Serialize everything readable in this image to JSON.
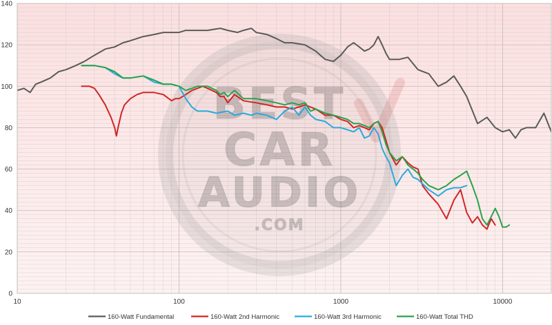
{
  "chart_data": {
    "type": "line",
    "x_scale": "log",
    "xlim": [
      10,
      20000
    ],
    "ylim": [
      0,
      140
    ],
    "x_ticks": [
      10,
      100,
      1000,
      10000
    ],
    "y_ticks": [
      0,
      20,
      40,
      60,
      80,
      100,
      120,
      140
    ],
    "grid": true,
    "legend_position": "bottom",
    "watermark": "BEST CAR AUDIO .COM",
    "colors": {
      "background_top": "#fbe0e0",
      "background_bottom": "#fdf2f2",
      "gridline": "#c9b8b8"
    },
    "series": [
      {
        "name": "160-Watt Fundamental",
        "color": "#595959",
        "points": [
          [
            10,
            98
          ],
          [
            11,
            99
          ],
          [
            12,
            97
          ],
          [
            13,
            101
          ],
          [
            14,
            102
          ],
          [
            16,
            104
          ],
          [
            18,
            107
          ],
          [
            20,
            108
          ],
          [
            23,
            110
          ],
          [
            26,
            112
          ],
          [
            30,
            115
          ],
          [
            35,
            118
          ],
          [
            40,
            119
          ],
          [
            45,
            121
          ],
          [
            50,
            122
          ],
          [
            60,
            124
          ],
          [
            70,
            125
          ],
          [
            80,
            126
          ],
          [
            90,
            126
          ],
          [
            100,
            126
          ],
          [
            110,
            127
          ],
          [
            130,
            127
          ],
          [
            150,
            127
          ],
          [
            180,
            128
          ],
          [
            200,
            127
          ],
          [
            230,
            126
          ],
          [
            250,
            127
          ],
          [
            280,
            128
          ],
          [
            300,
            126
          ],
          [
            350,
            125
          ],
          [
            400,
            123
          ],
          [
            450,
            121
          ],
          [
            500,
            121
          ],
          [
            600,
            120
          ],
          [
            700,
            117
          ],
          [
            800,
            113
          ],
          [
            900,
            112
          ],
          [
            1000,
            115
          ],
          [
            1100,
            119
          ],
          [
            1200,
            121
          ],
          [
            1300,
            119
          ],
          [
            1400,
            117
          ],
          [
            1500,
            118
          ],
          [
            1600,
            120
          ],
          [
            1700,
            124
          ],
          [
            1800,
            120
          ],
          [
            1900,
            116
          ],
          [
            2000,
            113
          ],
          [
            2300,
            113
          ],
          [
            2600,
            114
          ],
          [
            3000,
            108
          ],
          [
            3500,
            106
          ],
          [
            4000,
            100
          ],
          [
            4500,
            102
          ],
          [
            5000,
            105
          ],
          [
            5500,
            100
          ],
          [
            6000,
            95
          ],
          [
            7000,
            82
          ],
          [
            8000,
            85
          ],
          [
            9000,
            80
          ],
          [
            10000,
            78
          ],
          [
            11000,
            79
          ],
          [
            12000,
            75
          ],
          [
            13000,
            79
          ],
          [
            14000,
            80
          ],
          [
            16000,
            80
          ],
          [
            18000,
            87
          ],
          [
            20000,
            78
          ]
        ]
      },
      {
        "name": "160-Watt 2nd Harmonic",
        "color": "#d32424",
        "points": [
          [
            25,
            100
          ],
          [
            28,
            100
          ],
          [
            30,
            99
          ],
          [
            32,
            96
          ],
          [
            35,
            91
          ],
          [
            38,
            85
          ],
          [
            40,
            80
          ],
          [
            41,
            76
          ],
          [
            42,
            80
          ],
          [
            44,
            87
          ],
          [
            46,
            91
          ],
          [
            50,
            94
          ],
          [
            55,
            96
          ],
          [
            60,
            97
          ],
          [
            70,
            97
          ],
          [
            80,
            96
          ],
          [
            90,
            93
          ],
          [
            95,
            94
          ],
          [
            100,
            94
          ],
          [
            110,
            96
          ],
          [
            120,
            98
          ],
          [
            130,
            99
          ],
          [
            140,
            100
          ],
          [
            150,
            99
          ],
          [
            160,
            98
          ],
          [
            170,
            97
          ],
          [
            180,
            95
          ],
          [
            190,
            95
          ],
          [
            200,
            92
          ],
          [
            220,
            96
          ],
          [
            250,
            93
          ],
          [
            300,
            92
          ],
          [
            350,
            91
          ],
          [
            400,
            90
          ],
          [
            450,
            90
          ],
          [
            500,
            89
          ],
          [
            550,
            90
          ],
          [
            600,
            91
          ],
          [
            700,
            89
          ],
          [
            800,
            86
          ],
          [
            900,
            86
          ],
          [
            1000,
            84
          ],
          [
            1100,
            83
          ],
          [
            1200,
            80
          ],
          [
            1300,
            81
          ],
          [
            1400,
            80
          ],
          [
            1500,
            79
          ],
          [
            1600,
            82
          ],
          [
            1700,
            83
          ],
          [
            1800,
            80
          ],
          [
            1900,
            74
          ],
          [
            2000,
            68
          ],
          [
            2200,
            62
          ],
          [
            2400,
            66
          ],
          [
            2600,
            63
          ],
          [
            2800,
            61
          ],
          [
            3000,
            60
          ],
          [
            3200,
            52
          ],
          [
            3500,
            48
          ],
          [
            4000,
            43
          ],
          [
            4500,
            36
          ],
          [
            5000,
            45
          ],
          [
            5500,
            50
          ],
          [
            6000,
            39
          ],
          [
            6500,
            34
          ],
          [
            7000,
            37
          ],
          [
            7500,
            33
          ],
          [
            8000,
            31
          ],
          [
            8500,
            36
          ],
          [
            9000,
            33
          ]
        ]
      },
      {
        "name": "160-Watt 3rd Harmonic",
        "color": "#28a9e0",
        "points": [
          [
            25,
            110
          ],
          [
            30,
            110
          ],
          [
            35,
            109
          ],
          [
            40,
            106
          ],
          [
            45,
            104
          ],
          [
            50,
            104
          ],
          [
            60,
            105
          ],
          [
            70,
            102
          ],
          [
            80,
            101
          ],
          [
            90,
            101
          ],
          [
            100,
            100
          ],
          [
            110,
            94
          ],
          [
            120,
            90
          ],
          [
            130,
            88
          ],
          [
            150,
            88
          ],
          [
            170,
            87
          ],
          [
            200,
            88
          ],
          [
            220,
            86
          ],
          [
            250,
            87
          ],
          [
            280,
            86
          ],
          [
            300,
            87
          ],
          [
            350,
            86
          ],
          [
            400,
            84
          ],
          [
            450,
            88
          ],
          [
            500,
            90
          ],
          [
            550,
            86
          ],
          [
            600,
            90
          ],
          [
            650,
            86
          ],
          [
            700,
            84
          ],
          [
            800,
            83
          ],
          [
            900,
            80
          ],
          [
            1000,
            80
          ],
          [
            1100,
            79
          ],
          [
            1200,
            78
          ],
          [
            1300,
            80
          ],
          [
            1400,
            75
          ],
          [
            1500,
            76
          ],
          [
            1600,
            80
          ],
          [
            1700,
            77
          ],
          [
            1800,
            70
          ],
          [
            1900,
            66
          ],
          [
            2000,
            63
          ],
          [
            2200,
            52
          ],
          [
            2400,
            57
          ],
          [
            2600,
            60
          ],
          [
            2800,
            56
          ],
          [
            3000,
            55
          ],
          [
            3500,
            50
          ],
          [
            4000,
            47
          ],
          [
            4500,
            50
          ],
          [
            5000,
            51
          ],
          [
            5500,
            51
          ],
          [
            6000,
            52
          ]
        ]
      },
      {
        "name": "160-Watt Total THD",
        "color": "#27a24b",
        "points": [
          [
            25,
            110
          ],
          [
            30,
            110
          ],
          [
            35,
            109
          ],
          [
            40,
            107
          ],
          [
            45,
            104
          ],
          [
            50,
            104
          ],
          [
            60,
            105
          ],
          [
            70,
            103
          ],
          [
            80,
            101
          ],
          [
            90,
            101
          ],
          [
            100,
            100
          ],
          [
            110,
            98
          ],
          [
            120,
            99
          ],
          [
            130,
            100
          ],
          [
            140,
            100
          ],
          [
            150,
            100
          ],
          [
            170,
            98
          ],
          [
            180,
            96
          ],
          [
            190,
            97
          ],
          [
            200,
            95
          ],
          [
            220,
            98
          ],
          [
            250,
            94
          ],
          [
            300,
            94
          ],
          [
            350,
            93
          ],
          [
            400,
            92
          ],
          [
            450,
            91
          ],
          [
            500,
            92
          ],
          [
            550,
            91
          ],
          [
            600,
            92
          ],
          [
            650,
            88
          ],
          [
            700,
            89
          ],
          [
            800,
            87
          ],
          [
            900,
            86
          ],
          [
            1000,
            85
          ],
          [
            1100,
            84
          ],
          [
            1200,
            82
          ],
          [
            1300,
            82
          ],
          [
            1400,
            81
          ],
          [
            1500,
            80
          ],
          [
            1600,
            82
          ],
          [
            1700,
            83
          ],
          [
            1800,
            78
          ],
          [
            1900,
            72
          ],
          [
            2000,
            68
          ],
          [
            2200,
            64
          ],
          [
            2400,
            66
          ],
          [
            2600,
            62
          ],
          [
            2800,
            60
          ],
          [
            3000,
            58
          ],
          [
            3200,
            55
          ],
          [
            3500,
            52
          ],
          [
            4000,
            50
          ],
          [
            4500,
            52
          ],
          [
            5000,
            55
          ],
          [
            5500,
            57
          ],
          [
            6000,
            59
          ],
          [
            6500,
            52
          ],
          [
            7000,
            45
          ],
          [
            7500,
            36
          ],
          [
            8000,
            33
          ],
          [
            8500,
            37
          ],
          [
            9000,
            41
          ],
          [
            9500,
            37
          ],
          [
            10000,
            32
          ],
          [
            10500,
            32
          ],
          [
            11000,
            33
          ]
        ]
      }
    ]
  }
}
